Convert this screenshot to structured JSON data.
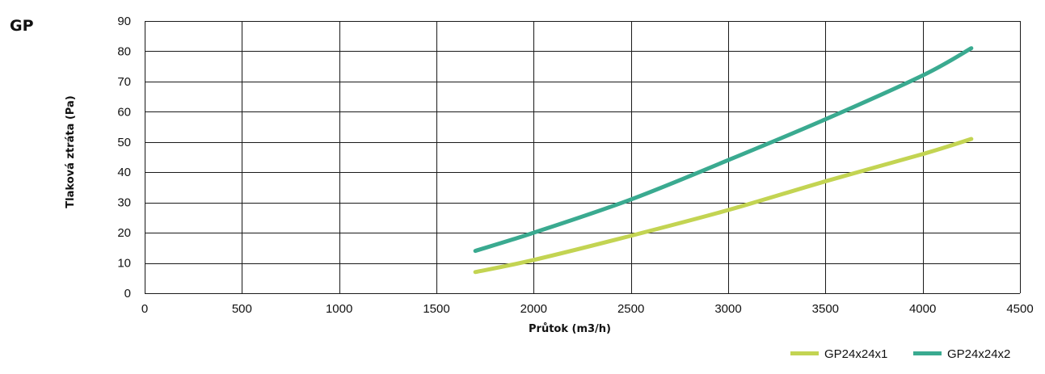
{
  "chart_data": {
    "type": "line",
    "title": "GP",
    "xlabel": "Průtok (m3/h)",
    "ylabel": "Tlaková ztráta (Pa)",
    "xlim": [
      0,
      4500
    ],
    "ylim": [
      0,
      90
    ],
    "x_ticks": [
      "0",
      "500",
      "1000",
      "1500",
      "2000",
      "2500",
      "3000",
      "3500",
      "4000",
      "4500"
    ],
    "y_ticks": [
      "0",
      "10",
      "20",
      "30",
      "40",
      "50",
      "60",
      "70",
      "80",
      "90"
    ],
    "grid": true,
    "legend_position": "bottom-right",
    "series": [
      {
        "name": "GP24x24x1",
        "color": "#c3d452",
        "x": [
          1700,
          2000,
          2500,
          3000,
          3500,
          4000,
          4250
        ],
        "y": [
          7,
          11,
          19,
          27.5,
          37,
          46,
          51
        ]
      },
      {
        "name": "GP24x24x2",
        "color": "#3aaa90",
        "x": [
          1700,
          2000,
          2500,
          3000,
          3500,
          4000,
          4250
        ],
        "y": [
          14,
          20,
          31,
          44,
          57.5,
          72,
          81
        ]
      }
    ]
  }
}
